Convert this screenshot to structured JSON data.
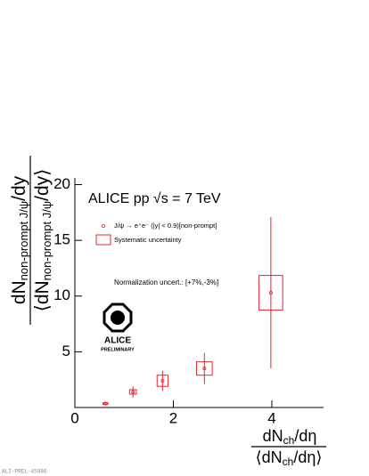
{
  "chart_data": {
    "type": "errorbar",
    "title": "ALICE pp √s = 7 TeV",
    "annotation": "Normalization uncert.: [+7%,-3%]",
    "logo": {
      "name": "ALICE",
      "status": "PRELIMINARY"
    },
    "figure_id": "ALI-PREL-45886",
    "x_label": {
      "numerator": [
        "dN",
        "ch",
        "/dη"
      ],
      "denominator": [
        "⟨dN",
        "ch",
        "/dη⟩"
      ]
    },
    "y_label": {
      "numerator": [
        "dN",
        "non-prompt J/ψ",
        "/dy"
      ],
      "denominator": [
        "⟨dN",
        "non-prompt J/ψ",
        "/dy⟩"
      ]
    },
    "xlim": [
      0,
      5.05
    ],
    "xticks": [
      0,
      2,
      4
    ],
    "ylim": [
      0,
      20.6
    ],
    "yticks": [
      5,
      10,
      15,
      20
    ],
    "series": [
      {
        "name": "J/ψ → e⁺e⁻ (|y| < 0.9)[non-prompt]",
        "color": "#e8262b",
        "x": [
          0.62,
          1.18,
          1.78,
          2.63,
          3.98
        ],
        "values": [
          0.35,
          1.4,
          2.4,
          3.5,
          10.3
        ],
        "errors": [
          0.15,
          0.5,
          0.9,
          1.4,
          6.8
        ]
      },
      {
        "name": "Systematic uncertainty",
        "color": "#e8262b",
        "x_widths": [
          0.05,
          0.07,
          0.11,
          0.16,
          0.24
        ],
        "errors": [
          0.08,
          0.2,
          0.5,
          0.6,
          1.55
        ]
      }
    ]
  }
}
